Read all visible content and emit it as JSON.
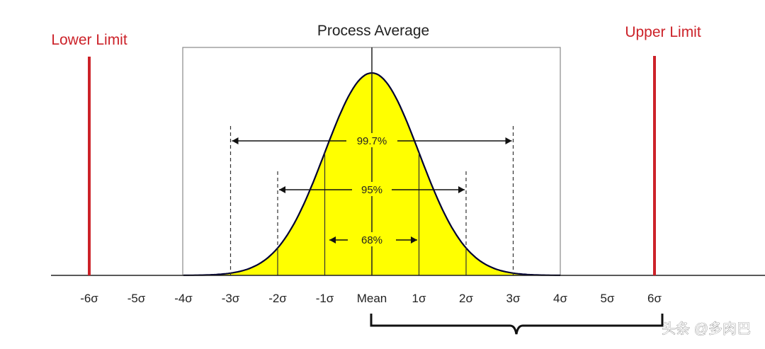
{
  "diagram": {
    "title": "Process Average",
    "lower_limit_label": "Lower Limit",
    "upper_limit_label": "Upper Limit",
    "lower_limit_sigma": -6,
    "upper_limit_sigma": 6,
    "axis_ticks": [
      {
        "sigma": -6,
        "label": "-6σ"
      },
      {
        "sigma": -5,
        "label": "-5σ"
      },
      {
        "sigma": -4,
        "label": "-4σ"
      },
      {
        "sigma": -3,
        "label": "-3σ"
      },
      {
        "sigma": -2,
        "label": "-2σ"
      },
      {
        "sigma": -1,
        "label": "-1σ"
      },
      {
        "sigma": 0,
        "label": "Mean"
      },
      {
        "sigma": 1,
        "label": "1σ"
      },
      {
        "sigma": 2,
        "label": "2σ"
      },
      {
        "sigma": 3,
        "label": "3σ"
      },
      {
        "sigma": 4,
        "label": "4σ"
      },
      {
        "sigma": 5,
        "label": "5σ"
      },
      {
        "sigma": 6,
        "label": "6σ"
      }
    ],
    "ranges": [
      {
        "sigma": 3,
        "label": "99.7%"
      },
      {
        "sigma": 2,
        "label": "95%"
      },
      {
        "sigma": 1,
        "label": "68%"
      }
    ],
    "colors": {
      "limit": "#cc2229",
      "curve_fill": "#ffff00",
      "curve_stroke": "#000033",
      "axis": "#222222",
      "frame": "#888888"
    }
  },
  "watermark": "头条 @多肉巴"
}
